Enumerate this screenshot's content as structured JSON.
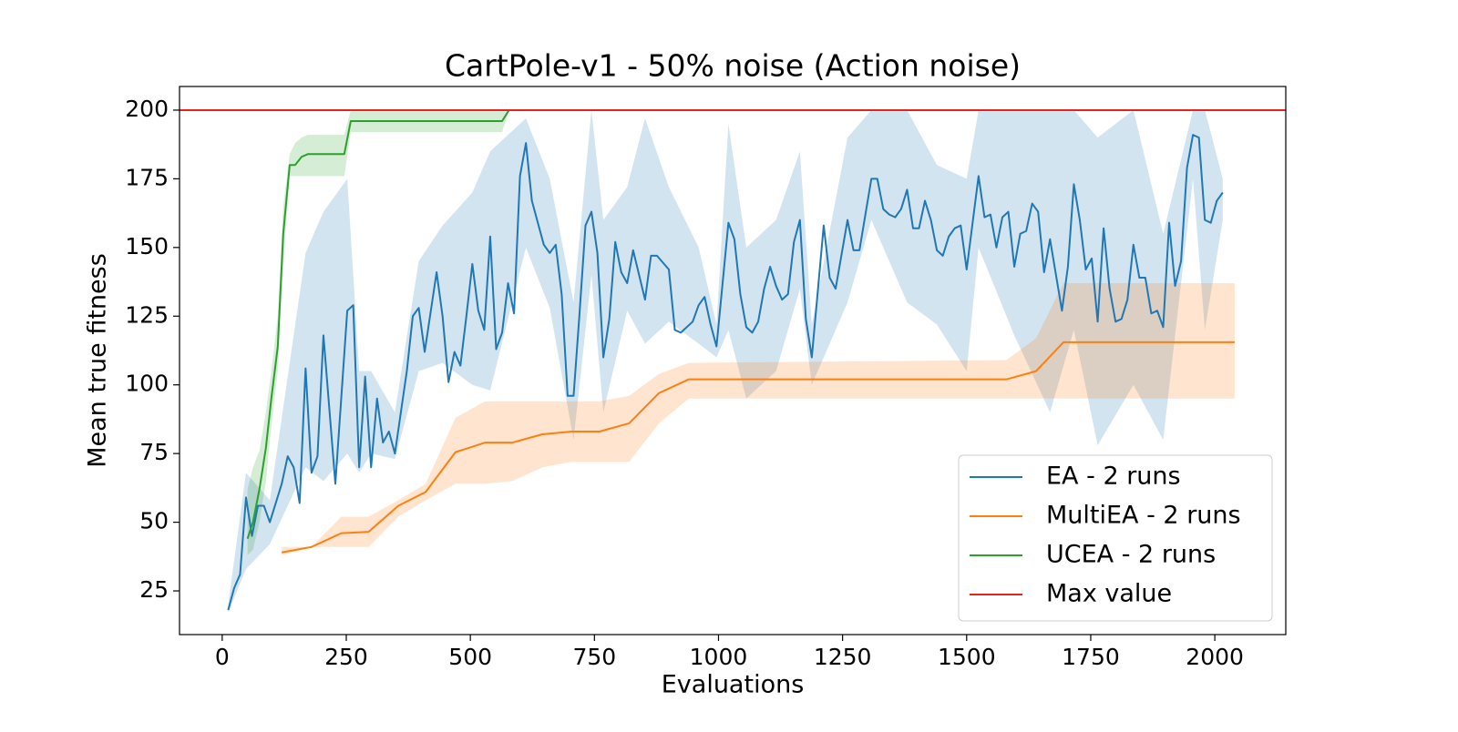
{
  "chart_data": {
    "type": "line",
    "title": "CartPole-v1 - 50% noise (Action noise)",
    "x_label": "Evaluations",
    "y_label": "Mean true fitness",
    "xlim": [
      -86,
      2143
    ],
    "ylim": [
      9.1,
      208.6
    ],
    "xticks": [
      0,
      250,
      500,
      750,
      1000,
      1250,
      1500,
      1750,
      2000
    ],
    "yticks": [
      25,
      50,
      75,
      100,
      125,
      150,
      175,
      200
    ],
    "legend": "lower right",
    "series": [
      {
        "name": "EA - 2 runs",
        "color": "#1f77b4",
        "x": [
          12,
          24,
          36,
          48,
          60,
          72,
          84,
          96,
          120,
          132,
          144,
          156,
          168,
          180,
          192,
          204,
          228,
          252,
          264,
          276,
          288,
          300,
          312,
          324,
          336,
          348,
          372,
          384,
          396,
          408,
          432,
          444,
          456,
          468,
          480,
          492,
          504,
          516,
          528,
          540,
          552,
          564,
          576,
          588,
          600,
          612,
          624,
          648,
          660,
          672,
          684,
          696,
          708,
          720,
          732,
          744,
          756,
          768,
          780,
          792,
          804,
          816,
          828,
          840,
          852,
          864,
          876,
          900,
          912,
          924,
          948,
          960,
          972,
          984,
          996,
          1020,
          1032,
          1044,
          1056,
          1068,
          1080,
          1092,
          1104,
          1116,
          1128,
          1140,
          1152,
          1164,
          1176,
          1188,
          1212,
          1224,
          1236,
          1260,
          1272,
          1284,
          1308,
          1320,
          1332,
          1344,
          1356,
          1368,
          1380,
          1392,
          1404,
          1416,
          1428,
          1440,
          1452,
          1464,
          1476,
          1488,
          1500,
          1524,
          1536,
          1548,
          1560,
          1572,
          1584,
          1596,
          1608,
          1620,
          1632,
          1644,
          1656,
          1668,
          1692,
          1704,
          1716,
          1728,
          1740,
          1752,
          1764,
          1776,
          1788,
          1800,
          1812,
          1824,
          1836,
          1848,
          1860,
          1872,
          1884,
          1896,
          1908,
          1920,
          1932,
          1944,
          1956,
          1968,
          1980,
          1992,
          2004,
          2016
        ],
        "values": [
          18,
          26,
          31,
          59,
          45,
          56,
          56,
          50,
          64,
          74,
          70,
          57,
          106,
          68,
          74,
          118,
          64,
          127,
          129,
          70,
          103,
          70,
          95,
          79,
          83,
          75,
          105,
          125,
          128,
          112,
          141,
          125,
          101,
          112,
          107,
          125,
          144,
          127,
          120,
          154,
          113,
          119,
          137,
          126,
          176,
          188,
          167,
          151,
          148,
          151,
          133,
          96,
          96,
          126,
          158,
          163,
          148,
          110,
          124,
          152,
          141,
          137,
          149,
          140,
          131,
          147,
          147,
          142,
          120,
          119,
          123,
          129,
          132,
          122,
          114,
          159,
          153,
          133,
          121,
          119,
          123,
          135,
          143,
          136,
          131,
          133,
          152,
          160,
          124,
          110,
          158,
          139,
          135,
          160,
          149,
          149,
          175,
          175,
          164,
          162,
          161,
          164,
          171,
          157,
          157,
          167,
          160,
          149,
          147,
          154,
          157,
          158,
          142,
          176,
          161,
          162,
          150,
          161,
          163,
          143,
          155,
          156,
          166,
          163,
          141,
          153,
          127,
          143,
          173,
          160,
          142,
          146,
          123,
          157,
          135,
          123,
          124,
          131,
          151,
          139,
          139,
          126,
          127,
          121,
          159,
          136,
          145,
          179,
          191,
          190,
          160,
          159,
          167,
          170
        ],
        "band": {
          "x": [
            12,
            48,
            96,
            168,
            204,
            252,
            276,
            300,
            348,
            396,
            444,
            504,
            540,
            612,
            660,
            708,
            744,
            768,
            816,
            852,
            900,
            960,
            996,
            1020,
            1056,
            1116,
            1164,
            1188,
            1260,
            1308,
            1380,
            1440,
            1500,
            1524,
            1596,
            1668,
            1716,
            1764,
            1836,
            1896,
            1956,
            1980,
            2016
          ],
          "lower": [
            17,
            33,
            42,
            70,
            65,
            75,
            68,
            75,
            73,
            105,
            108,
            100,
            98,
            150,
            128,
            80,
            140,
            90,
            127,
            115,
            123,
            115,
            110,
            120,
            95,
            105,
            135,
            100,
            130,
            160,
            130,
            122,
            105,
            150,
            118,
            90,
            120,
            78,
            100,
            80,
            175,
            120,
            160
          ],
          "upper": [
            20,
            68,
            58,
            148,
            163,
            175,
            105,
            105,
            90,
            145,
            158,
            170,
            185,
            197,
            175,
            130,
            200,
            160,
            172,
            197,
            172,
            150,
            122,
            195,
            150,
            160,
            185,
            122,
            190,
            200,
            200,
            180,
            175,
            200,
            200,
            200,
            200,
            190,
            200,
            155,
            200,
            200,
            175
          ]
        }
      },
      {
        "name": "MultiEA - 2 runs",
        "color": "#ff7f0e",
        "x": [
          120,
          180,
          240,
          295,
          355,
          410,
          470,
          530,
          585,
          645,
          705,
          760,
          820,
          880,
          940,
          1580,
          1640,
          1695,
          2040
        ],
        "values": [
          39,
          41,
          46,
          46.5,
          56,
          61,
          75.5,
          79,
          79,
          82,
          83,
          83,
          86,
          97,
          102,
          102,
          105,
          115.5,
          115.5
        ],
        "band": {
          "lower": [
            38,
            41,
            41,
            41,
            52,
            58,
            64,
            64,
            65,
            70,
            72,
            72,
            72,
            86,
            95,
            95,
            95,
            95,
            95
          ],
          "upper": [
            41,
            41,
            52,
            52,
            58,
            64,
            88,
            94,
            94,
            94,
            94,
            94,
            96,
            104,
            108,
            109,
            117,
            137,
            137
          ]
        }
      },
      {
        "name": "UCEA - 2 runs",
        "color": "#2ca02c",
        "x": [
          51,
          62,
          75,
          88,
          99,
          112,
          123,
          136,
          147,
          160,
          173,
          246,
          259,
          564,
          578
        ],
        "values": [
          44,
          50,
          62,
          77,
          95,
          114,
          155,
          180,
          180,
          183,
          184,
          184,
          196,
          196,
          200
        ],
        "band": {
          "lower": [
            38,
            40,
            50,
            65,
            85,
            105,
            145,
            176,
            176,
            176,
            176,
            176,
            192,
            192,
            200
          ],
          "upper": [
            62,
            70,
            76,
            90,
            105,
            125,
            165,
            184,
            188,
            190,
            191,
            191,
            200,
            200,
            200
          ]
        }
      },
      {
        "name": "Max value",
        "color": "#e8231d",
        "kind": "hline",
        "values": [
          200
        ]
      }
    ]
  }
}
